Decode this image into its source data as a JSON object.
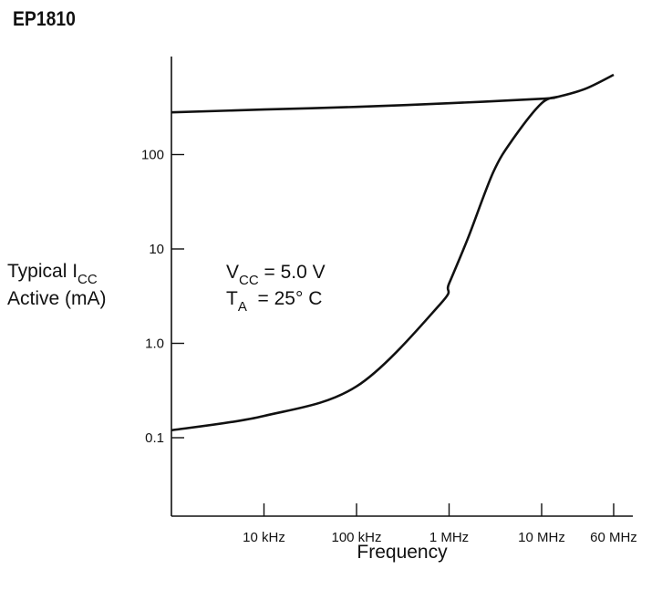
{
  "page": {
    "title": "EP1810"
  },
  "chart_data": {
    "type": "line",
    "title": "",
    "xlabel": "Frequency",
    "ylabel": {
      "line1_main": "Typical I",
      "line1_sub": "CC",
      "line2": "Active (mA)"
    },
    "xscale": "log",
    "yscale": "log",
    "xlim_hz": [
      1000,
      60000000
    ],
    "ylim_ma": [
      0.01,
      500
    ],
    "x_ticks": [
      {
        "value": 10000,
        "label": "10 kHz"
      },
      {
        "value": 100000,
        "label": "100 kHz"
      },
      {
        "value": 1000000,
        "label": "1 MHz"
      },
      {
        "value": 10000000,
        "label": "10 MHz"
      },
      {
        "value": 60000000,
        "label": "60 MHz"
      }
    ],
    "y_ticks": [
      {
        "value": 0.1,
        "label": "0.1"
      },
      {
        "value": 1.0,
        "label": "1.0"
      },
      {
        "value": 10,
        "label": "10"
      },
      {
        "value": 100,
        "label": "100"
      }
    ],
    "grid": false,
    "annotation": {
      "line1": {
        "sym": "V",
        "sub": "CC",
        "rest": " = 5.0 V"
      },
      "line2": {
        "sym": "T",
        "sub": "A",
        "rest": "  = 25° C"
      }
    },
    "series": [
      {
        "x": [
          1000,
          10000,
          100000,
          1000000,
          10000000,
          15000000,
          30000000,
          60000000
        ],
        "y": [
          280,
          300,
          320,
          350,
          390,
          410,
          500,
          700
        ]
      },
      {
        "x": [
          1000,
          10000,
          100000,
          800000,
          1000000,
          1600000,
          3000000,
          5000000,
          10000000,
          15000000
        ],
        "y": [
          0.12,
          0.17,
          0.35,
          2.6,
          4.3,
          13,
          65,
          150,
          350,
          410
        ]
      }
    ]
  }
}
